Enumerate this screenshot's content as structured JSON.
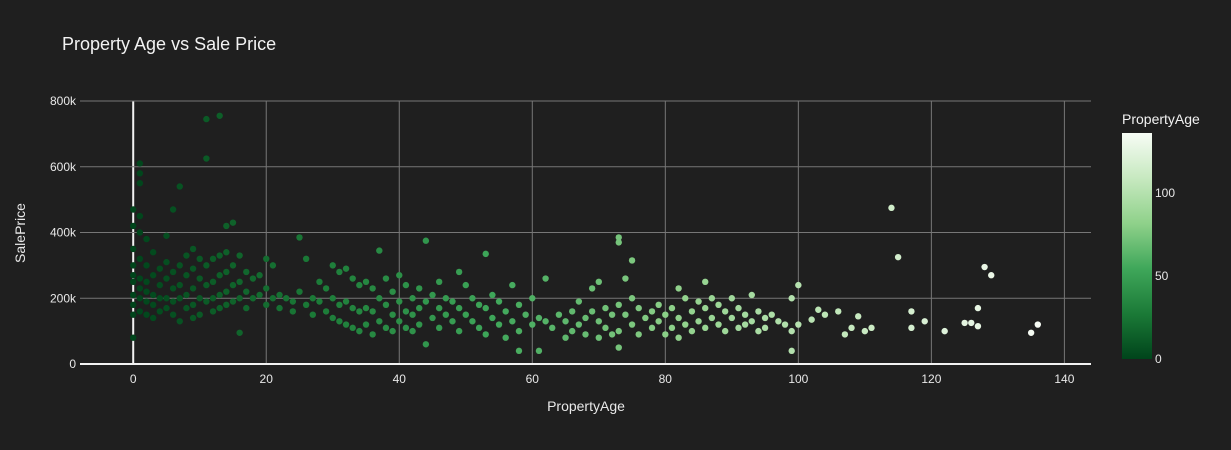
{
  "chart_data": {
    "type": "scatter",
    "title": "Property Age vs Sale Price",
    "xlabel": "PropertyAge",
    "ylabel": "SalePrice",
    "xlim": [
      -8,
      144
    ],
    "ylim": [
      0,
      800000
    ],
    "x_ticks": [
      0,
      20,
      40,
      60,
      80,
      100,
      120,
      140
    ],
    "y_ticks": [
      0,
      200000,
      400000,
      600000,
      800000
    ],
    "y_tick_labels": [
      "0",
      "200k",
      "400k",
      "600k",
      "800k"
    ],
    "grid": true,
    "colorbar": {
      "title": "PropertyAge",
      "range": [
        0,
        136
      ],
      "ticks": [
        0,
        50,
        100
      ],
      "colorscale": [
        "#00441b",
        "#1b7a37",
        "#3fa75a",
        "#8fd18a",
        "#c7e9c0",
        "#f7fcf5"
      ]
    },
    "points": [
      [
        0,
        210000
      ],
      [
        0,
        250000
      ],
      [
        0,
        300000
      ],
      [
        0,
        350000
      ],
      [
        0,
        420000
      ],
      [
        0,
        470000
      ],
      [
        0,
        180000
      ],
      [
        0,
        150000
      ],
      [
        0,
        80000
      ],
      [
        0,
        270000
      ],
      [
        1,
        610000
      ],
      [
        1,
        580000
      ],
      [
        1,
        550000
      ],
      [
        1,
        450000
      ],
      [
        1,
        400000
      ],
      [
        1,
        320000
      ],
      [
        1,
        260000
      ],
      [
        1,
        200000
      ],
      [
        1,
        160000
      ],
      [
        1,
        230000
      ],
      [
        2,
        380000
      ],
      [
        2,
        300000
      ],
      [
        2,
        250000
      ],
      [
        2,
        220000
      ],
      [
        2,
        190000
      ],
      [
        2,
        150000
      ],
      [
        3,
        340000
      ],
      [
        3,
        270000
      ],
      [
        3,
        210000
      ],
      [
        3,
        180000
      ],
      [
        3,
        140000
      ],
      [
        4,
        290000
      ],
      [
        4,
        240000
      ],
      [
        4,
        200000
      ],
      [
        4,
        160000
      ],
      [
        5,
        390000
      ],
      [
        5,
        310000
      ],
      [
        5,
        260000
      ],
      [
        5,
        200000
      ],
      [
        5,
        170000
      ],
      [
        6,
        470000
      ],
      [
        6,
        280000
      ],
      [
        6,
        230000
      ],
      [
        6,
        190000
      ],
      [
        6,
        150000
      ],
      [
        7,
        540000
      ],
      [
        7,
        300000
      ],
      [
        7,
        240000
      ],
      [
        7,
        200000
      ],
      [
        7,
        130000
      ],
      [
        8,
        330000
      ],
      [
        8,
        270000
      ],
      [
        8,
        210000
      ],
      [
        8,
        170000
      ],
      [
        9,
        350000
      ],
      [
        9,
        290000
      ],
      [
        9,
        230000
      ],
      [
        9,
        180000
      ],
      [
        9,
        140000
      ],
      [
        10,
        320000
      ],
      [
        10,
        260000
      ],
      [
        10,
        200000
      ],
      [
        10,
        150000
      ],
      [
        11,
        745000
      ],
      [
        11,
        625000
      ],
      [
        11,
        300000
      ],
      [
        11,
        240000
      ],
      [
        11,
        190000
      ],
      [
        12,
        320000
      ],
      [
        12,
        250000
      ],
      [
        12,
        200000
      ],
      [
        12,
        160000
      ],
      [
        13,
        755000
      ],
      [
        13,
        330000
      ],
      [
        13,
        270000
      ],
      [
        13,
        210000
      ],
      [
        13,
        170000
      ],
      [
        14,
        420000
      ],
      [
        14,
        340000
      ],
      [
        14,
        280000
      ],
      [
        14,
        220000
      ],
      [
        14,
        180000
      ],
      [
        15,
        430000
      ],
      [
        15,
        300000
      ],
      [
        15,
        240000
      ],
      [
        15,
        190000
      ],
      [
        16,
        330000
      ],
      [
        16,
        250000
      ],
      [
        16,
        200000
      ],
      [
        16,
        95000
      ],
      [
        17,
        280000
      ],
      [
        17,
        220000
      ],
      [
        17,
        170000
      ],
      [
        18,
        260000
      ],
      [
        18,
        200000
      ],
      [
        19,
        270000
      ],
      [
        19,
        210000
      ],
      [
        20,
        320000
      ],
      [
        20,
        230000
      ],
      [
        20,
        180000
      ],
      [
        21,
        300000
      ],
      [
        21,
        200000
      ],
      [
        22,
        210000
      ],
      [
        22,
        170000
      ],
      [
        23,
        200000
      ],
      [
        24,
        190000
      ],
      [
        24,
        160000
      ],
      [
        25,
        385000
      ],
      [
        25,
        220000
      ],
      [
        26,
        320000
      ],
      [
        26,
        180000
      ],
      [
        27,
        200000
      ],
      [
        27,
        150000
      ],
      [
        28,
        250000
      ],
      [
        28,
        190000
      ],
      [
        29,
        230000
      ],
      [
        29,
        160000
      ],
      [
        30,
        300000
      ],
      [
        30,
        200000
      ],
      [
        30,
        140000
      ],
      [
        31,
        280000
      ],
      [
        31,
        180000
      ],
      [
        31,
        130000
      ],
      [
        32,
        290000
      ],
      [
        32,
        190000
      ],
      [
        32,
        120000
      ],
      [
        33,
        260000
      ],
      [
        33,
        170000
      ],
      [
        33,
        110000
      ],
      [
        34,
        240000
      ],
      [
        34,
        160000
      ],
      [
        34,
        100000
      ],
      [
        35,
        250000
      ],
      [
        35,
        170000
      ],
      [
        35,
        120000
      ],
      [
        36,
        230000
      ],
      [
        36,
        160000
      ],
      [
        36,
        90000
      ],
      [
        37,
        345000
      ],
      [
        37,
        200000
      ],
      [
        37,
        130000
      ],
      [
        38,
        260000
      ],
      [
        38,
        180000
      ],
      [
        38,
        110000
      ],
      [
        39,
        220000
      ],
      [
        39,
        150000
      ],
      [
        39,
        100000
      ],
      [
        40,
        270000
      ],
      [
        40,
        190000
      ],
      [
        40,
        130000
      ],
      [
        41,
        240000
      ],
      [
        41,
        160000
      ],
      [
        41,
        110000
      ],
      [
        42,
        200000
      ],
      [
        42,
        150000
      ],
      [
        42,
        100000
      ],
      [
        43,
        230000
      ],
      [
        43,
        170000
      ],
      [
        43,
        120000
      ],
      [
        44,
        375000
      ],
      [
        44,
        190000
      ],
      [
        44,
        60000
      ],
      [
        45,
        210000
      ],
      [
        45,
        140000
      ],
      [
        46,
        250000
      ],
      [
        46,
        170000
      ],
      [
        46,
        110000
      ],
      [
        47,
        200000
      ],
      [
        47,
        150000
      ],
      [
        48,
        190000
      ],
      [
        48,
        130000
      ],
      [
        49,
        280000
      ],
      [
        49,
        170000
      ],
      [
        49,
        100000
      ],
      [
        50,
        240000
      ],
      [
        50,
        150000
      ],
      [
        51,
        200000
      ],
      [
        51,
        130000
      ],
      [
        52,
        180000
      ],
      [
        52,
        110000
      ],
      [
        53,
        335000
      ],
      [
        53,
        170000
      ],
      [
        53,
        90000
      ],
      [
        54,
        210000
      ],
      [
        54,
        140000
      ],
      [
        55,
        190000
      ],
      [
        55,
        120000
      ],
      [
        56,
        160000
      ],
      [
        56,
        80000
      ],
      [
        57,
        240000
      ],
      [
        57,
        130000
      ],
      [
        58,
        180000
      ],
      [
        58,
        100000
      ],
      [
        58,
        40000
      ],
      [
        59,
        150000
      ],
      [
        60,
        200000
      ],
      [
        60,
        120000
      ],
      [
        61,
        140000
      ],
      [
        61,
        40000
      ],
      [
        62,
        260000
      ],
      [
        62,
        130000
      ],
      [
        63,
        110000
      ],
      [
        64,
        150000
      ],
      [
        65,
        130000
      ],
      [
        65,
        80000
      ],
      [
        66,
        160000
      ],
      [
        66,
        100000
      ],
      [
        67,
        190000
      ],
      [
        67,
        120000
      ],
      [
        68,
        140000
      ],
      [
        68,
        90000
      ],
      [
        69,
        230000
      ],
      [
        69,
        160000
      ],
      [
        70,
        250000
      ],
      [
        70,
        130000
      ],
      [
        70,
        80000
      ],
      [
        71,
        170000
      ],
      [
        71,
        110000
      ],
      [
        72,
        150000
      ],
      [
        72,
        90000
      ],
      [
        73,
        385000
      ],
      [
        73,
        370000
      ],
      [
        73,
        180000
      ],
      [
        73,
        100000
      ],
      [
        73,
        50000
      ],
      [
        74,
        260000
      ],
      [
        74,
        150000
      ],
      [
        75,
        315000
      ],
      [
        75,
        200000
      ],
      [
        75,
        120000
      ],
      [
        76,
        170000
      ],
      [
        76,
        90000
      ],
      [
        77,
        140000
      ],
      [
        78,
        160000
      ],
      [
        78,
        110000
      ],
      [
        79,
        180000
      ],
      [
        79,
        130000
      ],
      [
        80,
        150000
      ],
      [
        80,
        90000
      ],
      [
        81,
        170000
      ],
      [
        81,
        110000
      ],
      [
        82,
        230000
      ],
      [
        82,
        140000
      ],
      [
        82,
        80000
      ],
      [
        83,
        200000
      ],
      [
        83,
        120000
      ],
      [
        84,
        160000
      ],
      [
        84,
        100000
      ],
      [
        85,
        190000
      ],
      [
        85,
        130000
      ],
      [
        86,
        250000
      ],
      [
        86,
        170000
      ],
      [
        86,
        110000
      ],
      [
        87,
        200000
      ],
      [
        87,
        140000
      ],
      [
        88,
        180000
      ],
      [
        88,
        120000
      ],
      [
        89,
        160000
      ],
      [
        89,
        100000
      ],
      [
        90,
        200000
      ],
      [
        90,
        140000
      ],
      [
        91,
        170000
      ],
      [
        91,
        110000
      ],
      [
        92,
        150000
      ],
      [
        92,
        120000
      ],
      [
        93,
        210000
      ],
      [
        93,
        130000
      ],
      [
        94,
        160000
      ],
      [
        94,
        100000
      ],
      [
        95,
        140000
      ],
      [
        95,
        110000
      ],
      [
        96,
        150000
      ],
      [
        97,
        130000
      ],
      [
        98,
        120000
      ],
      [
        99,
        200000
      ],
      [
        99,
        100000
      ],
      [
        99,
        40000
      ],
      [
        100,
        240000
      ],
      [
        100,
        120000
      ],
      [
        102,
        135000
      ],
      [
        103,
        165000
      ],
      [
        104,
        150000
      ],
      [
        106,
        160000
      ],
      [
        107,
        90000
      ],
      [
        108,
        110000
      ],
      [
        109,
        145000
      ],
      [
        110,
        100000
      ],
      [
        111,
        110000
      ],
      [
        114,
        475000
      ],
      [
        115,
        325000
      ],
      [
        117,
        160000
      ],
      [
        117,
        110000
      ],
      [
        119,
        130000
      ],
      [
        122,
        100000
      ],
      [
        125,
        125000
      ],
      [
        126,
        125000
      ],
      [
        127,
        170000
      ],
      [
        127,
        115000
      ],
      [
        128,
        295000
      ],
      [
        129,
        270000
      ],
      [
        135,
        95000
      ],
      [
        136,
        120000
      ]
    ]
  }
}
